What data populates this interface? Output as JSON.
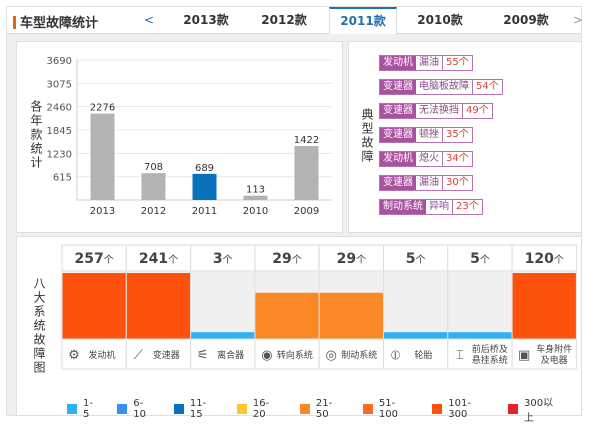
{
  "header": {
    "title": "车型故障统计",
    "prev_label": "<",
    "next_label": ">",
    "tabs": [
      {
        "label": "2013款",
        "active": false
      },
      {
        "label": "2012款",
        "active": false
      },
      {
        "label": "2011款",
        "active": true
      },
      {
        "label": "2010款",
        "active": false
      },
      {
        "label": "2009款",
        "active": false
      }
    ]
  },
  "colors": {
    "accent": "#1f6fb3",
    "bar_default": "#b3b3b3",
    "bar_selected": "#0a72bd",
    "tag_purple": "#a9509f"
  },
  "chart_data": {
    "type": "bar",
    "title": "",
    "ylabel": "各年款统计",
    "xlabel": "",
    "categories": [
      "2013",
      "2012",
      "2011",
      "2010",
      "2009"
    ],
    "values": [
      2276,
      708,
      689,
      113,
      1422
    ],
    "selected": "2011",
    "yticks": [
      615,
      1230,
      1845,
      2460,
      3075,
      3690
    ],
    "ylim": [
      0,
      3690
    ],
    "grid": true
  },
  "typical": {
    "label": "典型故障",
    "items": [
      {
        "system": "发动机",
        "issue": "漏油",
        "count": "55个"
      },
      {
        "system": "变速器",
        "issue": "电脑板故障",
        "count": "54个"
      },
      {
        "system": "变速器",
        "issue": "无法换挡",
        "count": "49个"
      },
      {
        "system": "变速器",
        "issue": "顿挫",
        "count": "35个"
      },
      {
        "system": "发动机",
        "issue": "熄火",
        "count": "34个"
      },
      {
        "system": "变速器",
        "issue": "漏油",
        "count": "30个"
      },
      {
        "system": "制动系统",
        "issue": "异响",
        "count": "23个"
      }
    ]
  },
  "eight": {
    "label": "八大系统故障图",
    "unit": "个",
    "systems": [
      {
        "name": "发动机",
        "count": 257,
        "icon": "engine-icon",
        "color": "#fd510c",
        "level": 0.97
      },
      {
        "name": "变速器",
        "count": 241,
        "icon": "gearshift-icon",
        "color": "#fd510c",
        "level": 0.97
      },
      {
        "name": "离合器",
        "count": 3,
        "icon": "clutch-icon",
        "color": "#2fb1f3",
        "level": 0.1
      },
      {
        "name": "转向系统",
        "count": 29,
        "icon": "steering-wheel-icon",
        "color": "#fa8925",
        "level": 0.68
      },
      {
        "name": "制动系统",
        "count": 29,
        "icon": "brake-disc-icon",
        "color": "#fa8925",
        "level": 0.68
      },
      {
        "name": "轮胎",
        "count": 5,
        "icon": "tire-icon",
        "color": "#2fb1f3",
        "level": 0.1
      },
      {
        "name": "前后桥及悬挂系统",
        "count": 5,
        "icon": "axle-icon",
        "color": "#2fb1f3",
        "level": 0.1
      },
      {
        "name": "车身附件及电器",
        "count": 120,
        "icon": "battery-icon",
        "color": "#fd510c",
        "level": 0.97
      }
    ]
  },
  "legend": [
    {
      "label": "1-5",
      "color": "#2fb1f3"
    },
    {
      "label": "6-10",
      "color": "#3690f0"
    },
    {
      "label": "11-15",
      "color": "#0a72bd"
    },
    {
      "label": "16-20",
      "color": "#fcc72e"
    },
    {
      "label": "21-50",
      "color": "#fa8925"
    },
    {
      "label": "51-100",
      "color": "#fb6b2a"
    },
    {
      "label": "101-300",
      "color": "#fd510c"
    },
    {
      "label": "300以上",
      "color": "#ec2028"
    }
  ]
}
